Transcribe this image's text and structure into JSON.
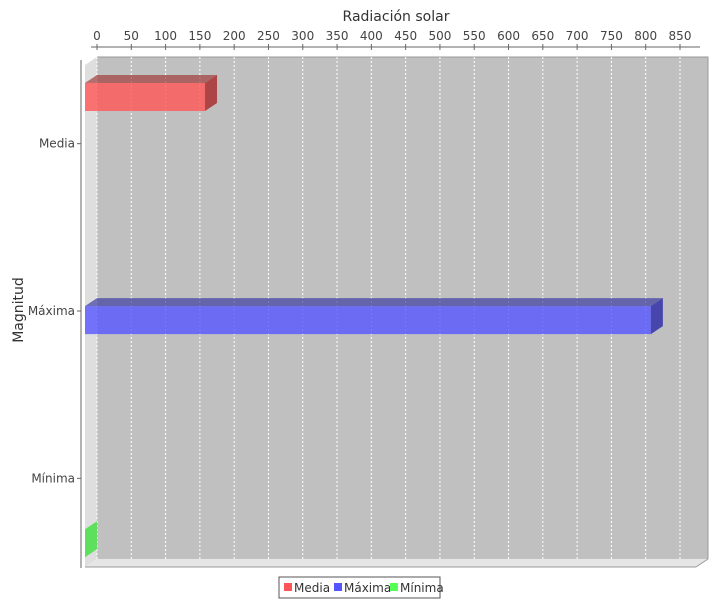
{
  "chart_data": {
    "type": "bar",
    "orientation": "horizontal",
    "rendering": "3d",
    "title": "",
    "xlabel": "Radiación solar",
    "xlabel_position": "top",
    "ylabel": "Magnitud",
    "categories": [
      "Media",
      "Máxima",
      "Mínima"
    ],
    "series": [
      {
        "name": "Media",
        "color": "#ff5555",
        "values": [
          175,
          null,
          null
        ]
      },
      {
        "name": "Máxima",
        "color": "#5555ff",
        "values": [
          null,
          825,
          null
        ]
      },
      {
        "name": "Mínima",
        "color": "#55ff55",
        "values": [
          null,
          null,
          0
        ]
      }
    ],
    "xlim": [
      0,
      850
    ],
    "x_ticks": [
      0,
      50,
      100,
      150,
      200,
      250,
      300,
      350,
      400,
      450,
      500,
      550,
      600,
      650,
      700,
      750,
      800,
      850
    ],
    "grid": true,
    "legend": "bottom",
    "plot_background": "#c0c0c0"
  }
}
